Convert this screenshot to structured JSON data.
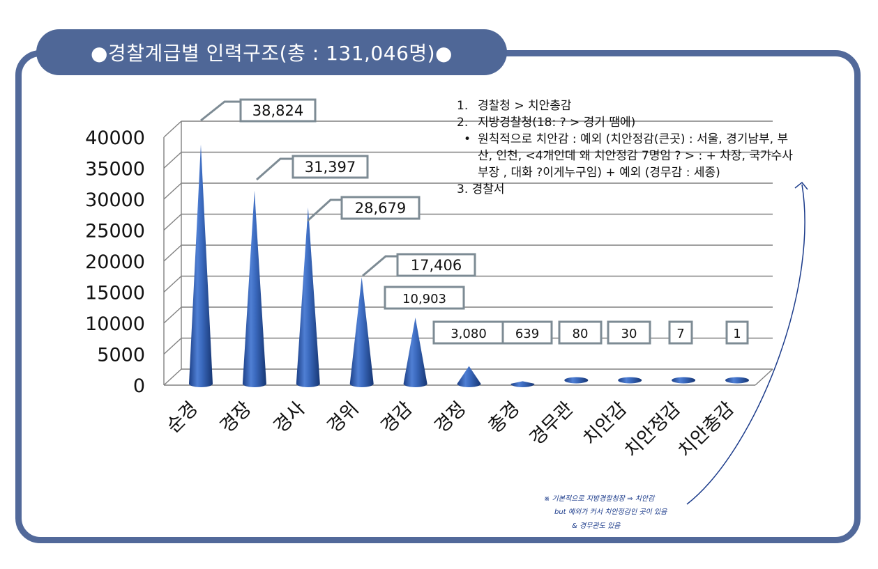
{
  "title": "●경찰계급별 인력구조(총 : 131,046명)●",
  "notes": {
    "item1_num": "1.",
    "item1_text": "경찰청 > 치안총감",
    "item2_num": "2.",
    "item2_text": "지방경찰청(18: ? > 경기 땜에)",
    "bullet": "•",
    "bullet_line1": "원칙적으로 치안감 : 예외 (치안정감(큰곳) : 서울, 경기남부, 부",
    "bullet_line2": "산, 인천, <4개인데 왜 치안정감 7명임 ? > : + 차장, 국가수사",
    "bullet_line3": "부장 , 대화 ?이게누구임) + 예외 (경무감 : 세종)",
    "item3": "3. 경찰서"
  },
  "handwritten": {
    "line1": "※ 기본적으로 지방경찰청장 ⇒ 치안감",
    "line2": "but 예외가 커서 치안정감인 곳이 있음",
    "line3": "& 경무관도 있음"
  },
  "colors": {
    "frame": "#52699a",
    "cone": "#2e5aa8",
    "label_border": "#7d8b94",
    "grid": "#808080",
    "annotation": "#1a3a8a"
  },
  "chart_data": {
    "type": "bar",
    "bar_shape": "3d-cone",
    "title": "",
    "xlabel": "",
    "ylabel": "",
    "categories": [
      "순경",
      "경장",
      "경사",
      "경위",
      "경감",
      "경정",
      "총경",
      "경무관",
      "치안감",
      "치안정감",
      "치안총감"
    ],
    "values": [
      38824,
      31397,
      28679,
      17406,
      10903,
      3080,
      639,
      80,
      30,
      7,
      1
    ],
    "data_labels": [
      "38,824",
      "31,397",
      "28,679",
      "17,406",
      "10,903",
      "3,080",
      "639",
      "80",
      "30",
      "7",
      "1"
    ],
    "ylim": [
      0,
      40000
    ],
    "yticks": [
      "0",
      "5000",
      "10000",
      "15000",
      "20000",
      "25000",
      "30000",
      "35000",
      "40000"
    ],
    "grid": true,
    "legend": "none"
  }
}
